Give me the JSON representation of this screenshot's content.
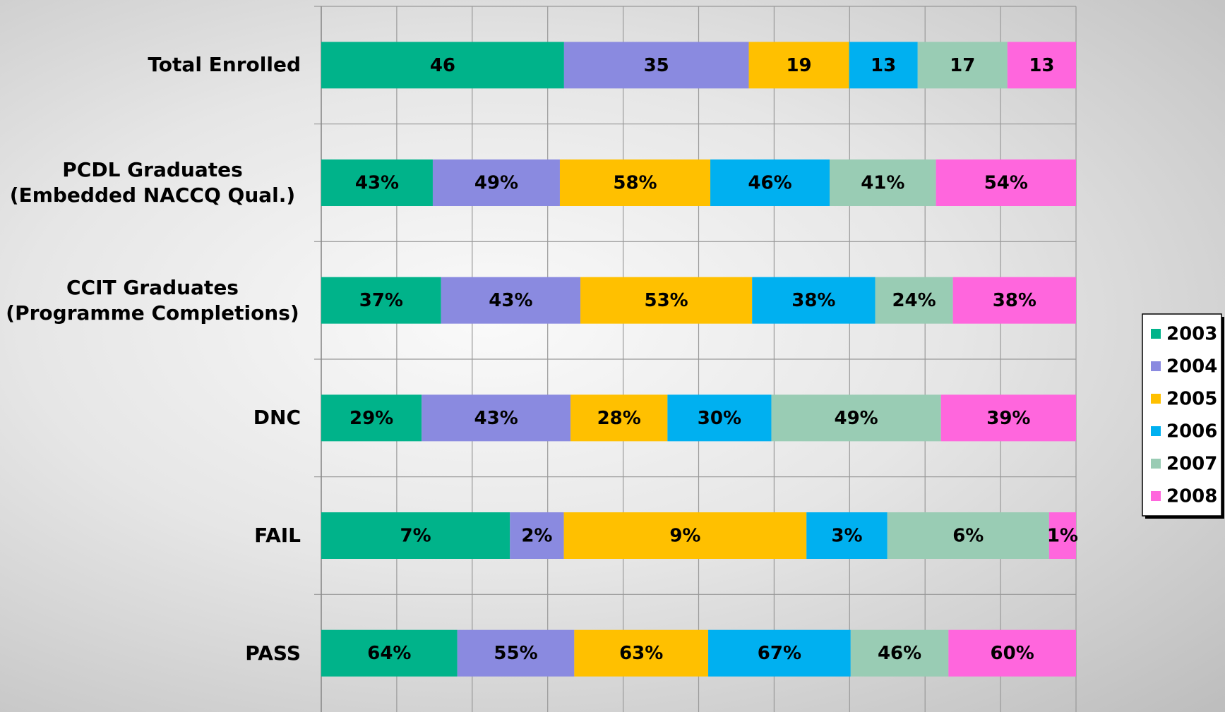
{
  "chart_data": {
    "type": "bar",
    "orientation": "horizontal",
    "stacked": "percent",
    "grid": true,
    "categories": [
      "Total Enrolled",
      "PCDL Graduates (Embedded NACCQ Qual.)",
      "CCIT Graduates (Programme Completions)",
      "DNC",
      "FAIL",
      "PASS"
    ],
    "series": [
      {
        "name": "2003",
        "color": "#00b38a",
        "values": [
          46,
          43,
          37,
          29,
          7,
          64
        ],
        "value_labels": [
          "46",
          "43%",
          "37%",
          "29%",
          "7%",
          "64%"
        ]
      },
      {
        "name": "2004",
        "color": "#8a8ae0",
        "values": [
          35,
          49,
          43,
          43,
          2,
          55
        ],
        "value_labels": [
          "35",
          "49%",
          "43%",
          "43%",
          "2%",
          "55%"
        ]
      },
      {
        "name": "2005",
        "color": "#ffc000",
        "values": [
          19,
          58,
          53,
          28,
          9,
          63
        ],
        "value_labels": [
          "19",
          "58%",
          "53%",
          "28%",
          "9%",
          "63%"
        ]
      },
      {
        "name": "2006",
        "color": "#00b0f0",
        "values": [
          13,
          46,
          38,
          30,
          3,
          67
        ],
        "value_labels": [
          "13",
          "46%",
          "38%",
          "30%",
          "3%",
          "67%"
        ]
      },
      {
        "name": "2007",
        "color": "#99ccb4",
        "values": [
          17,
          41,
          24,
          49,
          6,
          46
        ],
        "value_labels": [
          "17",
          "41%",
          "24%",
          "49%",
          "6%",
          "46%"
        ]
      },
      {
        "name": "2008",
        "color": "#ff66dd",
        "values": [
          13,
          54,
          38,
          39,
          1,
          60
        ],
        "value_labels": [
          "13",
          "54%",
          "38%",
          "39%",
          "1%",
          "60%"
        ]
      }
    ],
    "legend": "right"
  }
}
